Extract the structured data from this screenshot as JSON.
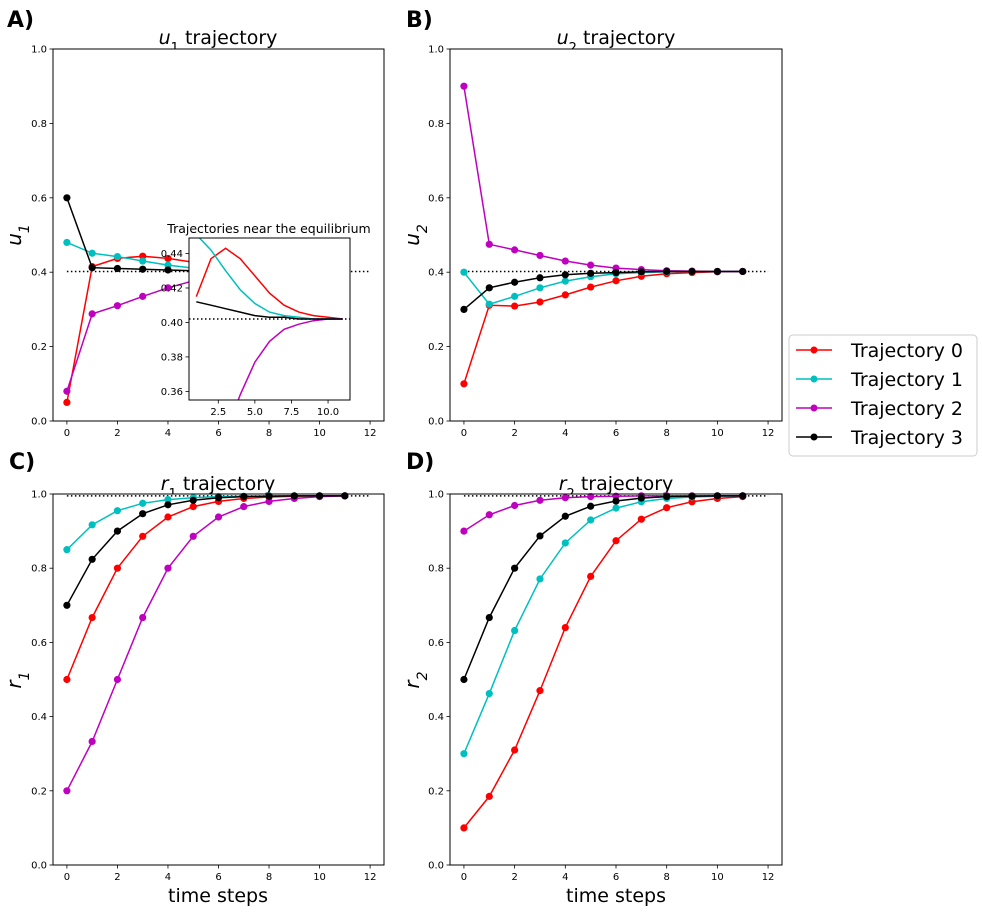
{
  "panels": [
    {
      "key": "u1",
      "label": "A)",
      "title": "u",
      "sub": "1",
      "title_rest": " trajectory",
      "ylabel": "u",
      "ysub": "1",
      "xlabel": ""
    },
    {
      "key": "u2",
      "label": "B)",
      "title": "u",
      "sub": "2",
      "title_rest": " trajectory",
      "ylabel": "u",
      "ysub": "2",
      "xlabel": ""
    },
    {
      "key": "r1",
      "label": "C)",
      "title": "r",
      "sub": "1",
      "title_rest": " trajectory",
      "ylabel": "r",
      "ysub": "1",
      "xlabel": "time steps"
    },
    {
      "key": "r2",
      "label": "D)",
      "title": "r",
      "sub": "2",
      "title_rest": " trajectory",
      "ylabel": "r",
      "ysub": "2",
      "xlabel": "time steps"
    }
  ],
  "legend": [
    "Trajectory 0",
    "Trajectory 1",
    "Trajectory 2",
    "Trajectory 3"
  ],
  "inset_title": "Trajectories near the equilibrium",
  "chart_data": [
    {
      "type": "line",
      "panel": "A)",
      "title": "u1 trajectory",
      "xlabel": "",
      "ylabel": "u1",
      "xlim": [
        -0.55,
        12.55
      ],
      "ylim": [
        0.0,
        1.0
      ],
      "xticks": [
        0,
        2,
        4,
        6,
        8,
        10,
        12
      ],
      "yticks": [
        0.0,
        0.2,
        0.4,
        0.6,
        0.8,
        1.0
      ],
      "x": [
        0,
        1,
        2,
        3,
        4,
        5,
        6,
        7,
        8,
        9,
        10,
        11
      ],
      "equilibrium": 0.402,
      "series": [
        {
          "name": "Trajectory 0",
          "color": "#ff0000",
          "values": [
            0.05,
            0.415,
            0.437,
            0.443,
            0.437,
            0.427,
            0.417,
            0.41,
            0.406,
            0.404,
            0.403,
            0.402
          ]
        },
        {
          "name": "Trajectory 1",
          "color": "#00bfbf",
          "values": [
            0.48,
            0.451,
            0.442,
            0.43,
            0.419,
            0.411,
            0.406,
            0.404,
            0.403,
            0.402,
            0.402,
            0.402
          ]
        },
        {
          "name": "Trajectory 2",
          "color": "#bf00bf",
          "values": [
            0.08,
            0.288,
            0.31,
            0.335,
            0.358,
            0.377,
            0.389,
            0.396,
            0.399,
            0.401,
            0.402,
            0.402
          ]
        },
        {
          "name": "Trajectory 3",
          "color": "#000000",
          "values": [
            0.6,
            0.412,
            0.41,
            0.408,
            0.406,
            0.404,
            0.403,
            0.403,
            0.402,
            0.402,
            0.402,
            0.402
          ]
        }
      ],
      "inset": {
        "title": "Trajectories near the equilibrium",
        "xlim": [
          0.5,
          11.5
        ],
        "ylim": [
          0.355,
          0.449
        ],
        "xticks": [
          2.5,
          5.0,
          7.5,
          10.0
        ],
        "yticks": [
          0.36,
          0.38,
          0.4,
          0.42,
          0.44
        ],
        "equilibrium": 0.402
      }
    },
    {
      "type": "line",
      "panel": "B)",
      "title": "u2 trajectory",
      "xlabel": "",
      "ylabel": "u2",
      "xlim": [
        -0.55,
        12.55
      ],
      "ylim": [
        0.0,
        1.0
      ],
      "xticks": [
        0,
        2,
        4,
        6,
        8,
        10,
        12
      ],
      "yticks": [
        0.0,
        0.2,
        0.4,
        0.6,
        0.8,
        1.0
      ],
      "x": [
        0,
        1,
        2,
        3,
        4,
        5,
        6,
        7,
        8,
        9,
        10,
        11
      ],
      "equilibrium": 0.402,
      "series": [
        {
          "name": "Trajectory 0",
          "color": "#ff0000",
          "values": [
            0.1,
            0.311,
            0.309,
            0.32,
            0.339,
            0.36,
            0.377,
            0.389,
            0.396,
            0.399,
            0.401,
            0.402
          ]
        },
        {
          "name": "Trajectory 1",
          "color": "#00bfbf",
          "values": [
            0.4,
            0.314,
            0.335,
            0.358,
            0.376,
            0.388,
            0.396,
            0.399,
            0.401,
            0.402,
            0.402,
            0.402
          ]
        },
        {
          "name": "Trajectory 2",
          "color": "#bf00bf",
          "values": [
            0.9,
            0.475,
            0.46,
            0.445,
            0.43,
            0.419,
            0.411,
            0.407,
            0.404,
            0.403,
            0.402,
            0.402
          ]
        },
        {
          "name": "Trajectory 3",
          "color": "#000000",
          "values": [
            0.3,
            0.358,
            0.373,
            0.385,
            0.393,
            0.397,
            0.399,
            0.401,
            0.402,
            0.402,
            0.402,
            0.402
          ]
        }
      ]
    },
    {
      "type": "line",
      "panel": "C)",
      "title": "r1 trajectory",
      "xlabel": "time steps",
      "ylabel": "r1",
      "xlim": [
        -0.55,
        12.55
      ],
      "ylim": [
        0.0,
        1.0
      ],
      "xticks": [
        0,
        2,
        4,
        6,
        8,
        10,
        12
      ],
      "yticks": [
        0.0,
        0.2,
        0.4,
        0.6,
        0.8,
        1.0
      ],
      "x": [
        0,
        1,
        2,
        3,
        4,
        5,
        6,
        7,
        8,
        9,
        10,
        11
      ],
      "equilibrium": 0.995,
      "series": [
        {
          "name": "Trajectory 0",
          "color": "#ff0000",
          "values": [
            0.5,
            0.667,
            0.8,
            0.886,
            0.938,
            0.966,
            0.98,
            0.988,
            0.992,
            0.994,
            0.995,
            0.995
          ]
        },
        {
          "name": "Trajectory 1",
          "color": "#00bfbf",
          "values": [
            0.85,
            0.917,
            0.955,
            0.975,
            0.985,
            0.99,
            0.993,
            0.994,
            0.995,
            0.995,
            0.995,
            0.995
          ]
        },
        {
          "name": "Trajectory 2",
          "color": "#bf00bf",
          "values": [
            0.2,
            0.333,
            0.5,
            0.667,
            0.8,
            0.886,
            0.938,
            0.966,
            0.98,
            0.988,
            0.993,
            0.995
          ]
        },
        {
          "name": "Trajectory 3",
          "color": "#000000",
          "values": [
            0.7,
            0.824,
            0.9,
            0.947,
            0.971,
            0.983,
            0.99,
            0.993,
            0.994,
            0.995,
            0.995,
            0.995
          ]
        }
      ]
    },
    {
      "type": "line",
      "panel": "D)",
      "title": "r2 trajectory",
      "xlabel": "time steps",
      "ylabel": "r2",
      "xlim": [
        -0.55,
        12.55
      ],
      "ylim": [
        0.0,
        1.0
      ],
      "xticks": [
        0,
        2,
        4,
        6,
        8,
        10,
        12
      ],
      "yticks": [
        0.0,
        0.2,
        0.4,
        0.6,
        0.8,
        1.0
      ],
      "x": [
        0,
        1,
        2,
        3,
        4,
        5,
        6,
        7,
        8,
        9,
        10,
        11
      ],
      "equilibrium": 0.995,
      "series": [
        {
          "name": "Trajectory 0",
          "color": "#ff0000",
          "values": [
            0.1,
            0.185,
            0.31,
            0.47,
            0.64,
            0.778,
            0.874,
            0.932,
            0.963,
            0.979,
            0.988,
            0.993
          ]
        },
        {
          "name": "Trajectory 1",
          "color": "#00bfbf",
          "values": [
            0.3,
            0.462,
            0.632,
            0.771,
            0.868,
            0.93,
            0.962,
            0.979,
            0.988,
            0.992,
            0.994,
            0.995
          ]
        },
        {
          "name": "Trajectory 2",
          "color": "#bf00bf",
          "values": [
            0.9,
            0.944,
            0.969,
            0.983,
            0.99,
            0.993,
            0.994,
            0.995,
            0.995,
            0.995,
            0.995,
            0.995
          ]
        },
        {
          "name": "Trajectory 3",
          "color": "#000000",
          "values": [
            0.5,
            0.667,
            0.8,
            0.887,
            0.94,
            0.967,
            0.981,
            0.989,
            0.993,
            0.994,
            0.995,
            0.995
          ]
        }
      ]
    }
  ]
}
